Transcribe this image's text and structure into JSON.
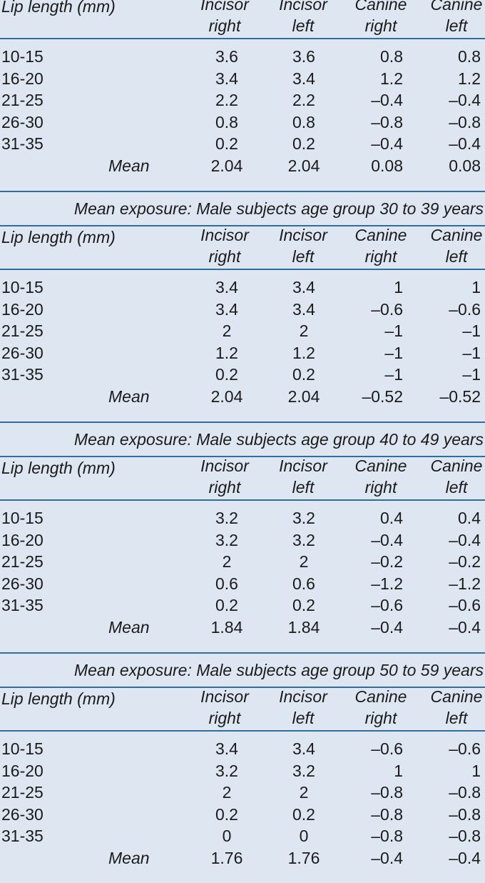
{
  "headers": {
    "lip_length": "Lip length (mm)",
    "incisor_right": [
      "Incisor",
      "right"
    ],
    "incisor_left": [
      "Incisor",
      "left"
    ],
    "canine_right": [
      "Canine",
      "right"
    ],
    "canine_left": [
      "Canine",
      "left"
    ]
  },
  "mean_label": "Mean",
  "sections": [
    {
      "caption": "",
      "rows": [
        [
          "10-15",
          "3.6",
          "3.6",
          "0.8",
          "0.8"
        ],
        [
          "16-20",
          "3.4",
          "3.4",
          "1.2",
          "1.2"
        ],
        [
          "21-25",
          "2.2",
          "2.2",
          "–0.4",
          "–0.4"
        ],
        [
          "26-30",
          "0.8",
          "0.8",
          "–0.8",
          "–0.8"
        ],
        [
          "31-35",
          "0.2",
          "0.2",
          "–0.4",
          "–0.4"
        ]
      ],
      "mean": [
        "2.04",
        "2.04",
        "0.08",
        "0.08"
      ]
    },
    {
      "caption": "Mean exposure: Male subjects age group 30 to 39 years",
      "rows": [
        [
          "10-15",
          "3.4",
          "3.4",
          "1",
          "1"
        ],
        [
          "16-20",
          "3.4",
          "3.4",
          "–0.6",
          "–0.6"
        ],
        [
          "21-25",
          "2",
          "2",
          "–1",
          "–1"
        ],
        [
          "26-30",
          "1.2",
          "1.2",
          "–1",
          "–1"
        ],
        [
          "31-35",
          "0.2",
          "0.2",
          "–1",
          "–1"
        ]
      ],
      "mean": [
        "2.04",
        "2.04",
        "–0.52",
        "–0.52"
      ]
    },
    {
      "caption": "Mean exposure: Male subjects age group 40 to 49 years",
      "rows": [
        [
          "10-15",
          "3.2",
          "3.2",
          "0.4",
          "0.4"
        ],
        [
          "16-20",
          "3.2",
          "3.2",
          "–0.4",
          "–0.4"
        ],
        [
          "21-25",
          "2",
          "2",
          "–0.2",
          "–0.2"
        ],
        [
          "26-30",
          "0.6",
          "0.6",
          "–1.2",
          "–1.2"
        ],
        [
          "31-35",
          "0.2",
          "0.2",
          "–0.6",
          "–0.6"
        ]
      ],
      "mean": [
        "1.84",
        "1.84",
        "–0.4",
        "–0.4"
      ]
    },
    {
      "caption": "Mean exposure: Male subjects age group 50 to 59 years",
      "rows": [
        [
          "10-15",
          "3.4",
          "3.4",
          "–0.6",
          "–0.6"
        ],
        [
          "16-20",
          "3.2",
          "3.2",
          "1",
          "1"
        ],
        [
          "21-25",
          "2",
          "2",
          "–0.8",
          "–0.8"
        ],
        [
          "26-30",
          "0.2",
          "0.2",
          "–0.8",
          "–0.8"
        ],
        [
          "31-35",
          "0",
          "0",
          "–0.8",
          "–0.8"
        ]
      ],
      "mean": [
        "1.76",
        "1.76",
        "–0.4",
        "–0.4"
      ]
    }
  ]
}
